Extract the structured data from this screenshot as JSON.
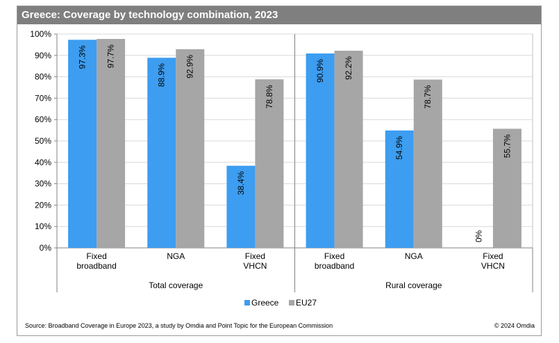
{
  "title": "Greece: Coverage by technology combination, 2023",
  "source": "Source: Broadband Coverage in Europe 2023, a study by Omdia and Point Topic for the European Commission",
  "copyright": "© 2024 Omdia",
  "colors": {
    "greece": "#3d9df0",
    "eu27": "#a6a6a6",
    "title_bar": "#7f7f7f",
    "grid": "#d9d9d9"
  },
  "chart_data": {
    "type": "bar",
    "groups": [
      "Total coverage",
      "Rural coverage"
    ],
    "categories": [
      [
        "Fixed",
        "broadband"
      ],
      [
        "NGA"
      ],
      [
        "Fixed",
        "VHCN"
      ],
      [
        "Fixed",
        "broadband"
      ],
      [
        "NGA"
      ],
      [
        "Fixed",
        "VHCN"
      ]
    ],
    "series": [
      {
        "name": "Greece",
        "values": [
          97.3,
          88.9,
          38.4,
          90.9,
          54.9,
          0
        ],
        "labels": [
          "97.3%",
          "88.9%",
          "38.4%",
          "90.9%",
          "54.9%",
          "0%"
        ]
      },
      {
        "name": "EU27",
        "values": [
          97.7,
          92.9,
          78.8,
          92.2,
          78.7,
          55.7
        ],
        "labels": [
          "97.7%",
          "92.9%",
          "78.8%",
          "92.2%",
          "78.7%",
          "55.7%"
        ]
      }
    ],
    "ylim": [
      0,
      100
    ],
    "yticks": [
      "0%",
      "10%",
      "20%",
      "30%",
      "40%",
      "50%",
      "60%",
      "70%",
      "80%",
      "90%",
      "100%"
    ],
    "grid": true,
    "legend": "bottom"
  }
}
